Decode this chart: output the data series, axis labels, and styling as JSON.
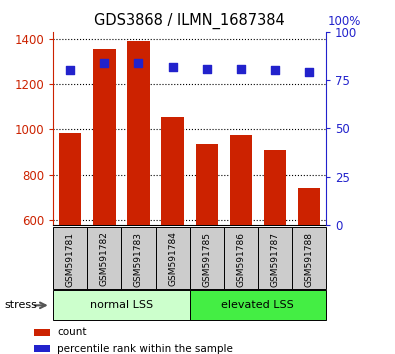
{
  "title": "GDS3868 / ILMN_1687384",
  "samples": [
    "GSM591781",
    "GSM591782",
    "GSM591783",
    "GSM591784",
    "GSM591785",
    "GSM591786",
    "GSM591787",
    "GSM591788"
  ],
  "counts": [
    985,
    1355,
    1390,
    1055,
    935,
    975,
    910,
    740
  ],
  "percentile_ranks": [
    80,
    84,
    84,
    82,
    81,
    81,
    80,
    79
  ],
  "ylim_left": [
    580,
    1430
  ],
  "ylim_right": [
    0,
    100
  ],
  "yticks_left": [
    600,
    800,
    1000,
    1200,
    1400
  ],
  "yticks_right": [
    0,
    25,
    50,
    75,
    100
  ],
  "bar_color": "#cc2200",
  "dot_color": "#2222cc",
  "bar_bottom": 580,
  "groups": [
    {
      "label": "normal LSS",
      "start": 0,
      "end": 4,
      "color": "#ccffcc"
    },
    {
      "label": "elevated LSS",
      "start": 4,
      "end": 8,
      "color": "#44ee44"
    }
  ],
  "stress_label": "stress",
  "legend_items": [
    {
      "color": "#cc2200",
      "label": "count"
    },
    {
      "color": "#2222cc",
      "label": "percentile rank within the sample"
    }
  ],
  "sample_bg_color": "#cccccc",
  "left_tick_color": "#cc2200",
  "right_tick_color": "#2222cc",
  "grid_linestyle": "dotted",
  "pct_label": "100%"
}
